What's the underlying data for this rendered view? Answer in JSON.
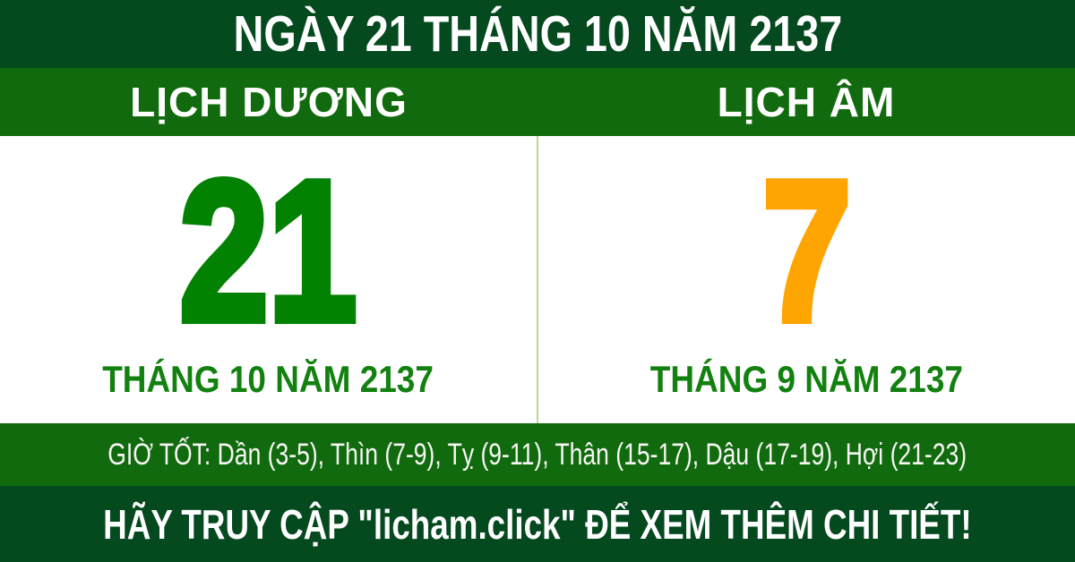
{
  "banner": {
    "title": "NGÀY 21 THÁNG 10 NĂM 2137"
  },
  "calendar": {
    "solar": {
      "header": "LỊCH DƯƠNG",
      "day": "21",
      "month_year": "THÁNG 10 NĂM 2137"
    },
    "lunar": {
      "header": "LỊCH ÂM",
      "day": "7",
      "month_year": "THÁNG 9 NĂM 2137"
    }
  },
  "good_hours": {
    "text": "GIỜ TỐT: Dần (3-5), Thìn (7-9), Tỵ (9-11), Thân (15-17), Dậu (17-19), Hợi (21-23)"
  },
  "footer": {
    "text": "HÃY TRUY CẬP \"licham.click\" ĐỂ XEM THÊM CHI TIẾT!"
  },
  "colors": {
    "dark_green": "#05491f",
    "medium_green": "#116b0e",
    "solar_day_green": "#028102",
    "month_label_green": "#12810f",
    "lunar_day_orange": "#ffa502",
    "divider_pale_green": "#b9d98e",
    "text_white": "#ffffff"
  }
}
